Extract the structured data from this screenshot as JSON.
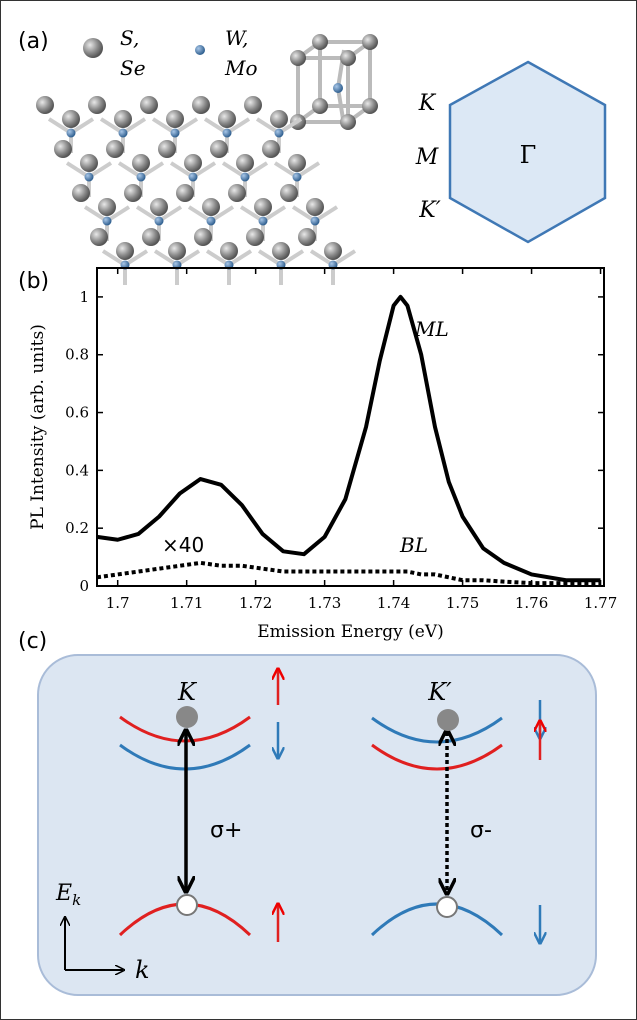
{
  "panel_a": {
    "label": "(a)",
    "legend_chalcogen_1": "S,",
    "legend_chalcogen_2": "Se",
    "legend_metal_1": "W,",
    "legend_metal_2": "Mo",
    "k_point": "K",
    "m_point": "M",
    "k_prime_point": "K′",
    "gamma_point": "Γ"
  },
  "chart_data": {
    "type": "line",
    "panel_label": "(b)",
    "xlabel": "Emission Energy (eV)",
    "ylabel": "PL Intensity (arb. units)",
    "x": [
      1.697,
      1.7,
      1.703,
      1.706,
      1.709,
      1.712,
      1.715,
      1.718,
      1.721,
      1.724,
      1.727,
      1.73,
      1.733,
      1.736,
      1.738,
      1.74,
      1.741,
      1.742,
      1.744,
      1.746,
      1.748,
      1.75,
      1.753,
      1.756,
      1.76,
      1.765,
      1.77
    ],
    "series": [
      {
        "name": "ML",
        "color": "#000000",
        "dash": false,
        "values": [
          0.17,
          0.16,
          0.18,
          0.24,
          0.32,
          0.37,
          0.35,
          0.28,
          0.18,
          0.12,
          0.11,
          0.17,
          0.3,
          0.55,
          0.78,
          0.97,
          1.0,
          0.97,
          0.8,
          0.55,
          0.36,
          0.24,
          0.13,
          0.08,
          0.04,
          0.02,
          0.02
        ]
      },
      {
        "name": "BL",
        "color": "#000000",
        "dash": true,
        "values": [
          0.03,
          0.04,
          0.05,
          0.06,
          0.07,
          0.08,
          0.07,
          0.07,
          0.06,
          0.05,
          0.05,
          0.05,
          0.05,
          0.05,
          0.05,
          0.05,
          0.05,
          0.05,
          0.04,
          0.04,
          0.03,
          0.02,
          0.02,
          0.015,
          0.01,
          0.01,
          0.01
        ]
      }
    ],
    "annotation": "×40",
    "xlim": [
      1.697,
      1.7705
    ],
    "ylim": [
      0,
      1.1
    ],
    "xticks": [
      1.7,
      1.71,
      1.72,
      1.73,
      1.74,
      1.75,
      1.76,
      1.77
    ],
    "yticks": [
      0,
      0.2,
      0.4,
      0.6,
      0.8,
      1
    ]
  },
  "panel_c": {
    "label": "(c)",
    "valley_left": "K",
    "valley_right": "K′",
    "transition_left": "σ+",
    "transition_right": "σ-",
    "energy_axis": "E",
    "energy_axis_subscript": "k",
    "momentum_axis": "k"
  }
}
